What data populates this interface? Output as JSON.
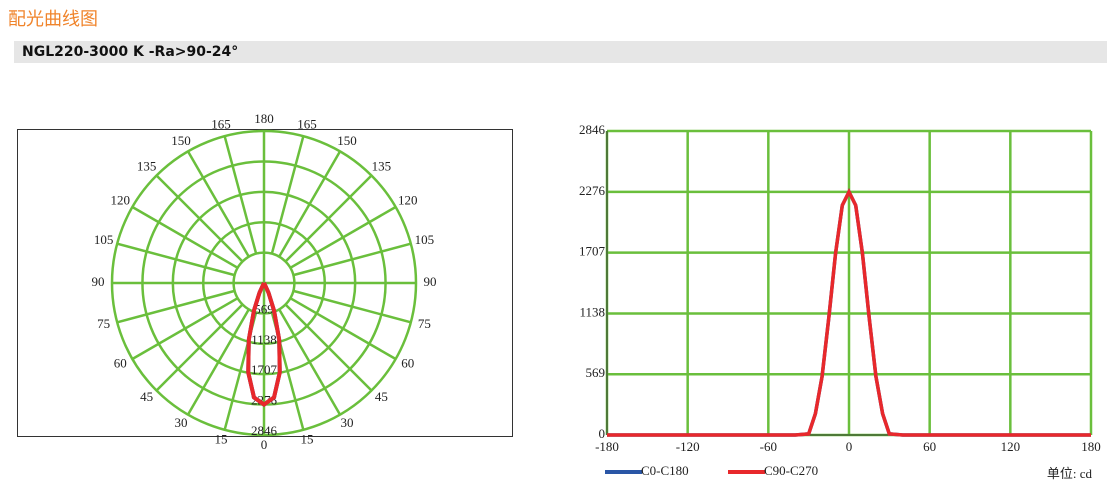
{
  "header": {
    "title": "配光曲线图",
    "model": "NGL220-3000 K -Ra>90-24°"
  },
  "chart_data": [
    {
      "type": "polar",
      "grid_color": "#6abf3c",
      "angle_ticks": [
        0,
        15,
        30,
        45,
        60,
        75,
        90,
        105,
        120,
        135,
        150,
        165,
        180
      ],
      "rlim": [
        0,
        2846
      ],
      "rticks": [
        569,
        1138,
        1707,
        2276,
        2846
      ],
      "x": [
        -180,
        -40,
        -30,
        -25,
        -20,
        -15,
        -10,
        -5,
        0,
        5,
        10,
        15,
        20,
        25,
        30,
        40,
        180
      ],
      "series": [
        {
          "color": "#2a56a6",
          "values": [
            0,
            0,
            10,
            200,
            550,
            1100,
            1700,
            2150,
            2276,
            2150,
            1700,
            1100,
            550,
            200,
            10,
            0,
            0
          ]
        },
        {
          "color": "#e8282b",
          "values": [
            0,
            0,
            10,
            200,
            550,
            1100,
            1700,
            2150,
            2276,
            2150,
            1700,
            1100,
            550,
            200,
            10,
            0,
            0
          ]
        }
      ]
    },
    {
      "type": "line",
      "grid": true,
      "grid_color": "#6abf3c",
      "x": [
        -180,
        -40,
        -30,
        -25,
        -20,
        -15,
        -10,
        -5,
        0,
        5,
        10,
        15,
        20,
        25,
        30,
        40,
        180
      ],
      "xlim": [
        -180,
        180
      ],
      "xticks": [
        -180,
        -120,
        -60,
        0,
        60,
        120,
        180
      ],
      "ylim": [
        0,
        2846
      ],
      "yticks": [
        0,
        569,
        1138,
        1707,
        2276,
        2846
      ],
      "series": [
        {
          "name": "C0-C180",
          "color": "#2a56a6",
          "values": [
            0,
            0,
            10,
            200,
            550,
            1100,
            1700,
            2150,
            2276,
            2150,
            1700,
            1100,
            550,
            200,
            10,
            0,
            0
          ]
        },
        {
          "name": "C90-C270",
          "color": "#e8282b",
          "values": [
            0,
            0,
            10,
            200,
            550,
            1100,
            1700,
            2150,
            2276,
            2150,
            1700,
            1100,
            550,
            200,
            10,
            0,
            0
          ]
        }
      ],
      "unit_label": "单位: cd"
    }
  ]
}
